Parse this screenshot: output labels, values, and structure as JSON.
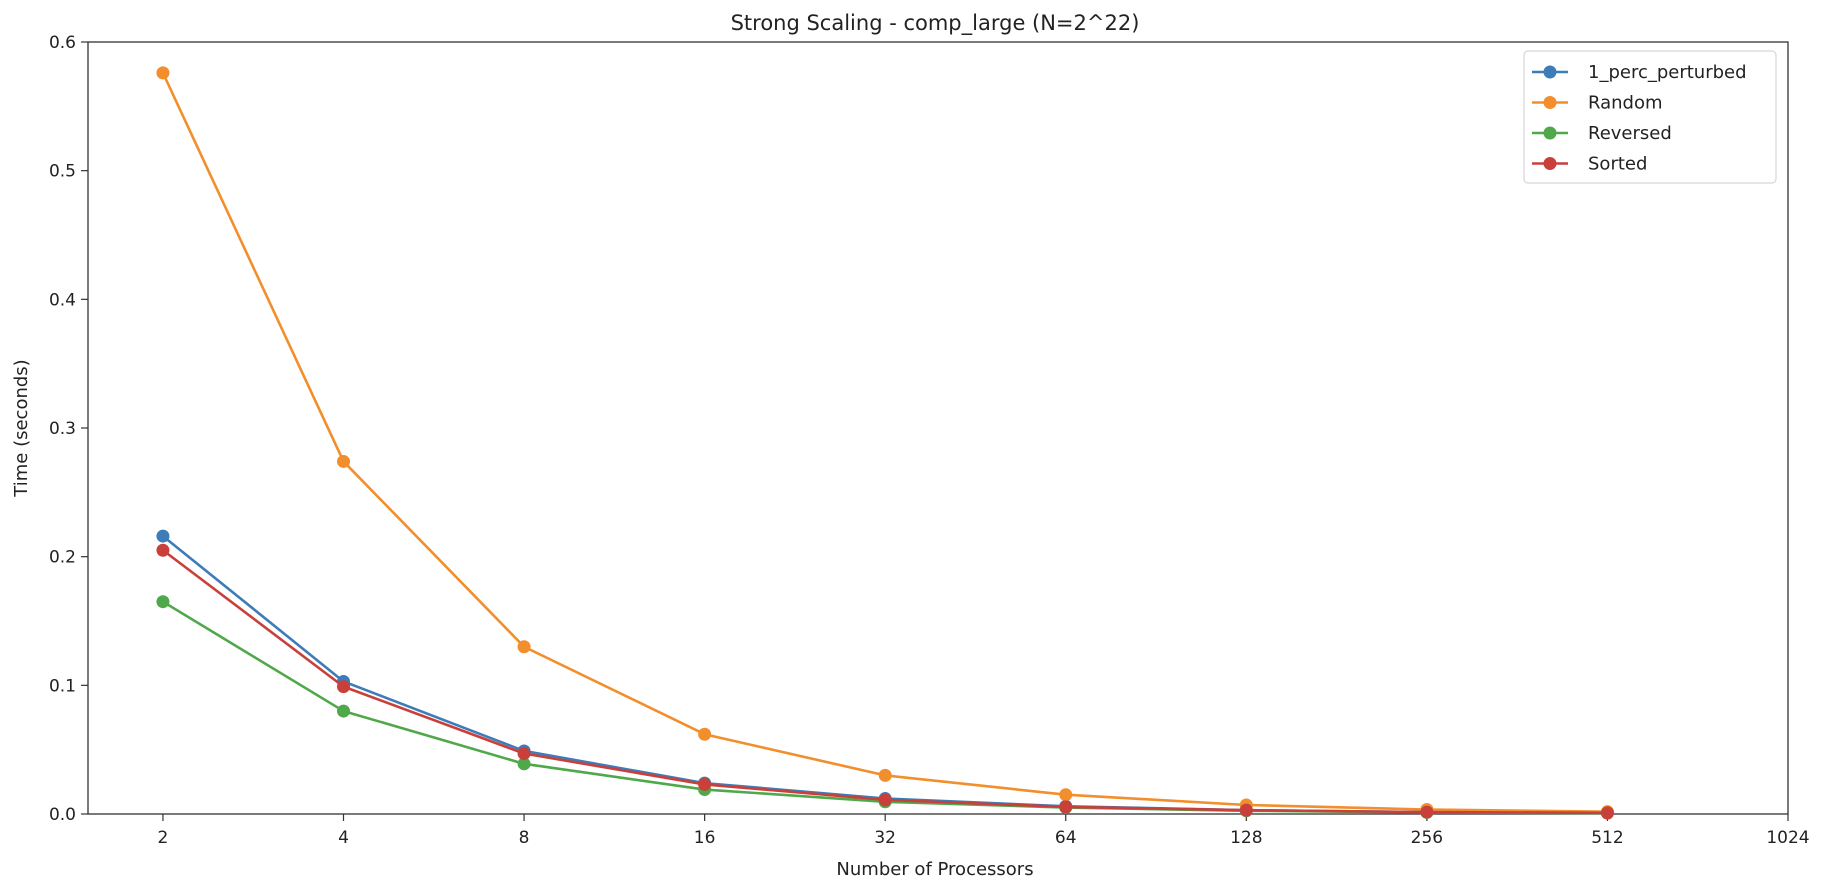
{
  "chart_data": {
    "type": "line",
    "title": "Strong Scaling - comp_large (N=2^22)",
    "xlabel": "Number of Processors",
    "ylabel": "Time (seconds)",
    "x_scale": "log2",
    "xlim": [
      1.5,
      1024
    ],
    "ylim": [
      0,
      0.6
    ],
    "x_ticks": [
      2,
      4,
      8,
      16,
      32,
      64,
      128,
      256,
      512,
      1024
    ],
    "y_ticks": [
      0.0,
      0.1,
      0.2,
      0.3,
      0.4,
      0.5,
      0.6
    ],
    "x_tick_labels": [
      "2",
      "4",
      "8",
      "16",
      "32",
      "64",
      "128",
      "256",
      "512",
      "1024"
    ],
    "y_tick_labels": [
      "0.0",
      "0.1",
      "0.2",
      "0.3",
      "0.4",
      "0.5",
      "0.6"
    ],
    "grid": false,
    "legend_position": "top-right",
    "x": [
      2,
      4,
      8,
      16,
      32,
      64,
      128,
      256,
      512
    ],
    "series": [
      {
        "name": "1_perc_perturbed",
        "color": "#3d7cb8",
        "values": [
          0.216,
          0.103,
          0.049,
          0.024,
          0.012,
          0.006,
          0.003,
          0.0015,
          0.001
        ]
      },
      {
        "name": "Random",
        "color": "#f28e2b",
        "values": [
          0.576,
          0.274,
          0.13,
          0.062,
          0.03,
          0.015,
          0.007,
          0.0035,
          0.0018
        ]
      },
      {
        "name": "Reversed",
        "color": "#4fa84a",
        "values": [
          0.165,
          0.08,
          0.039,
          0.019,
          0.0095,
          0.005,
          0.0025,
          0.0012,
          0.0007
        ]
      },
      {
        "name": "Sorted",
        "color": "#c9403b",
        "values": [
          0.205,
          0.099,
          0.047,
          0.023,
          0.011,
          0.0055,
          0.003,
          0.0015,
          0.0009
        ]
      }
    ]
  }
}
